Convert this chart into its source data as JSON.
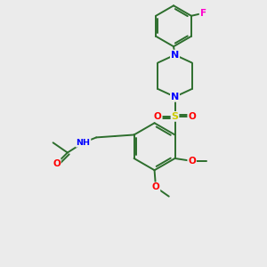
{
  "background_color": "#ebebeb",
  "bond_color": "#2d6e2d",
  "atom_colors": {
    "N": "#0000ff",
    "O": "#ff0000",
    "S": "#cccc00",
    "F": "#ff00cc",
    "H": "#888888",
    "C": "#2d6e2d"
  },
  "figsize": [
    3.0,
    3.0
  ],
  "dpi": 100
}
